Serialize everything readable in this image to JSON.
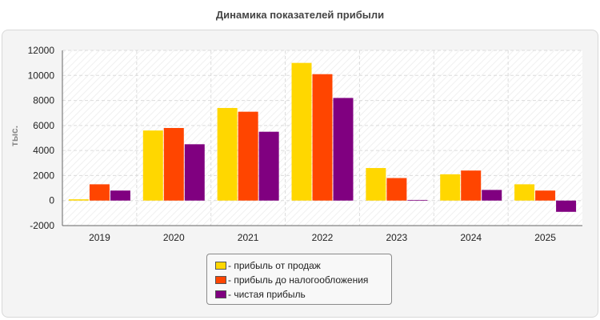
{
  "chart_data": {
    "type": "bar",
    "title": "Динамика показателей прибыли",
    "ylabel": "тыс.",
    "xlabel": "",
    "categories": [
      "2019",
      "2020",
      "2021",
      "2022",
      "2023",
      "2024",
      "2025"
    ],
    "ylim": [
      -2000,
      12000
    ],
    "yticks": [
      -2000,
      0,
      2000,
      4000,
      6000,
      8000,
      10000,
      12000
    ],
    "grid": true,
    "legend_position": "bottom",
    "series": [
      {
        "name": "- прибыль от продаж",
        "color": "#ffd700",
        "values": [
          100,
          5600,
          7400,
          11000,
          2600,
          2100,
          1300
        ]
      },
      {
        "name": "- прибыль до налогообложения",
        "color": "#ff4500",
        "values": [
          1300,
          5800,
          7100,
          10100,
          1800,
          2400,
          800
        ]
      },
      {
        "name": "- чистая прибыль",
        "color": "#800080",
        "values": [
          800,
          4500,
          5500,
          8200,
          50,
          850,
          -900
        ]
      }
    ]
  }
}
